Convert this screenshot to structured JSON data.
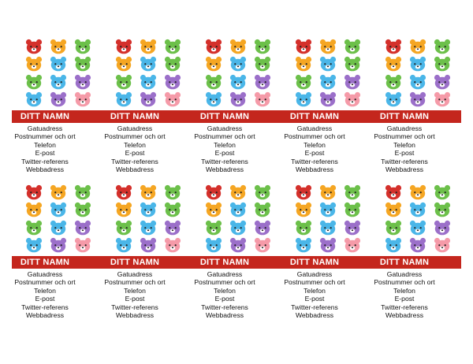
{
  "palette": {
    "red": "#d4302b",
    "orange": "#f5a623",
    "green": "#6cc04a",
    "blue": "#4ab6e8",
    "purple": "#9b6fc9",
    "pink": "#f59aa8",
    "band": "#c4261d"
  },
  "bear_grid": [
    [
      "red",
      "orange",
      "green"
    ],
    [
      "orange",
      "blue",
      "green"
    ],
    [
      "green",
      "blue",
      "purple"
    ],
    [
      "blue",
      "purple",
      "pink"
    ]
  ],
  "cards": [
    {
      "name": "DITT NAMN",
      "lines": [
        "Gatuadress",
        "Postnummer och ort",
        "Telefon",
        "E-post",
        "Twitter-referens",
        "Webbadress"
      ]
    },
    {
      "name": "DITT NAMN",
      "lines": [
        "Gatuadress",
        "Postnummer och ort",
        "Telefon",
        "E-post",
        "Twitter-referens",
        "Webbadress"
      ]
    },
    {
      "name": "DITT NAMN",
      "lines": [
        "Gatuadress",
        "Postnummer och ort",
        "Telefon",
        "E-post",
        "Twitter-referens",
        "Webbadress"
      ]
    },
    {
      "name": "DITT NAMN",
      "lines": [
        "Gatuadress",
        "Postnummer och ort",
        "Telefon",
        "E-post",
        "Twitter-referens",
        "Webbadress"
      ]
    },
    {
      "name": "DITT NAMN",
      "lines": [
        "Gatuadress",
        "Postnummer och ort",
        "Telefon",
        "E-post",
        "Twitter-referens",
        "Webbadress"
      ]
    },
    {
      "name": "DITT NAMN",
      "lines": [
        "Gatuadress",
        "Postnummer och ort",
        "Telefon",
        "E-post",
        "Twitter-referens",
        "Webbadress"
      ]
    },
    {
      "name": "DITT NAMN",
      "lines": [
        "Gatuadress",
        "Postnummer och ort",
        "Telefon",
        "E-post",
        "Twitter-referens",
        "Webbadress"
      ]
    },
    {
      "name": "DITT NAMN",
      "lines": [
        "Gatuadress",
        "Postnummer och ort",
        "Telefon",
        "E-post",
        "Twitter-referens",
        "Webbadress"
      ]
    },
    {
      "name": "DITT NAMN",
      "lines": [
        "Gatuadress",
        "Postnummer och ort",
        "Telefon",
        "E-post",
        "Twitter-referens",
        "Webbadress"
      ]
    },
    {
      "name": "DITT NAMN",
      "lines": [
        "Gatuadress",
        "Postnummer och ort",
        "Telefon",
        "E-post",
        "Twitter-referens",
        "Webbadress"
      ]
    }
  ]
}
